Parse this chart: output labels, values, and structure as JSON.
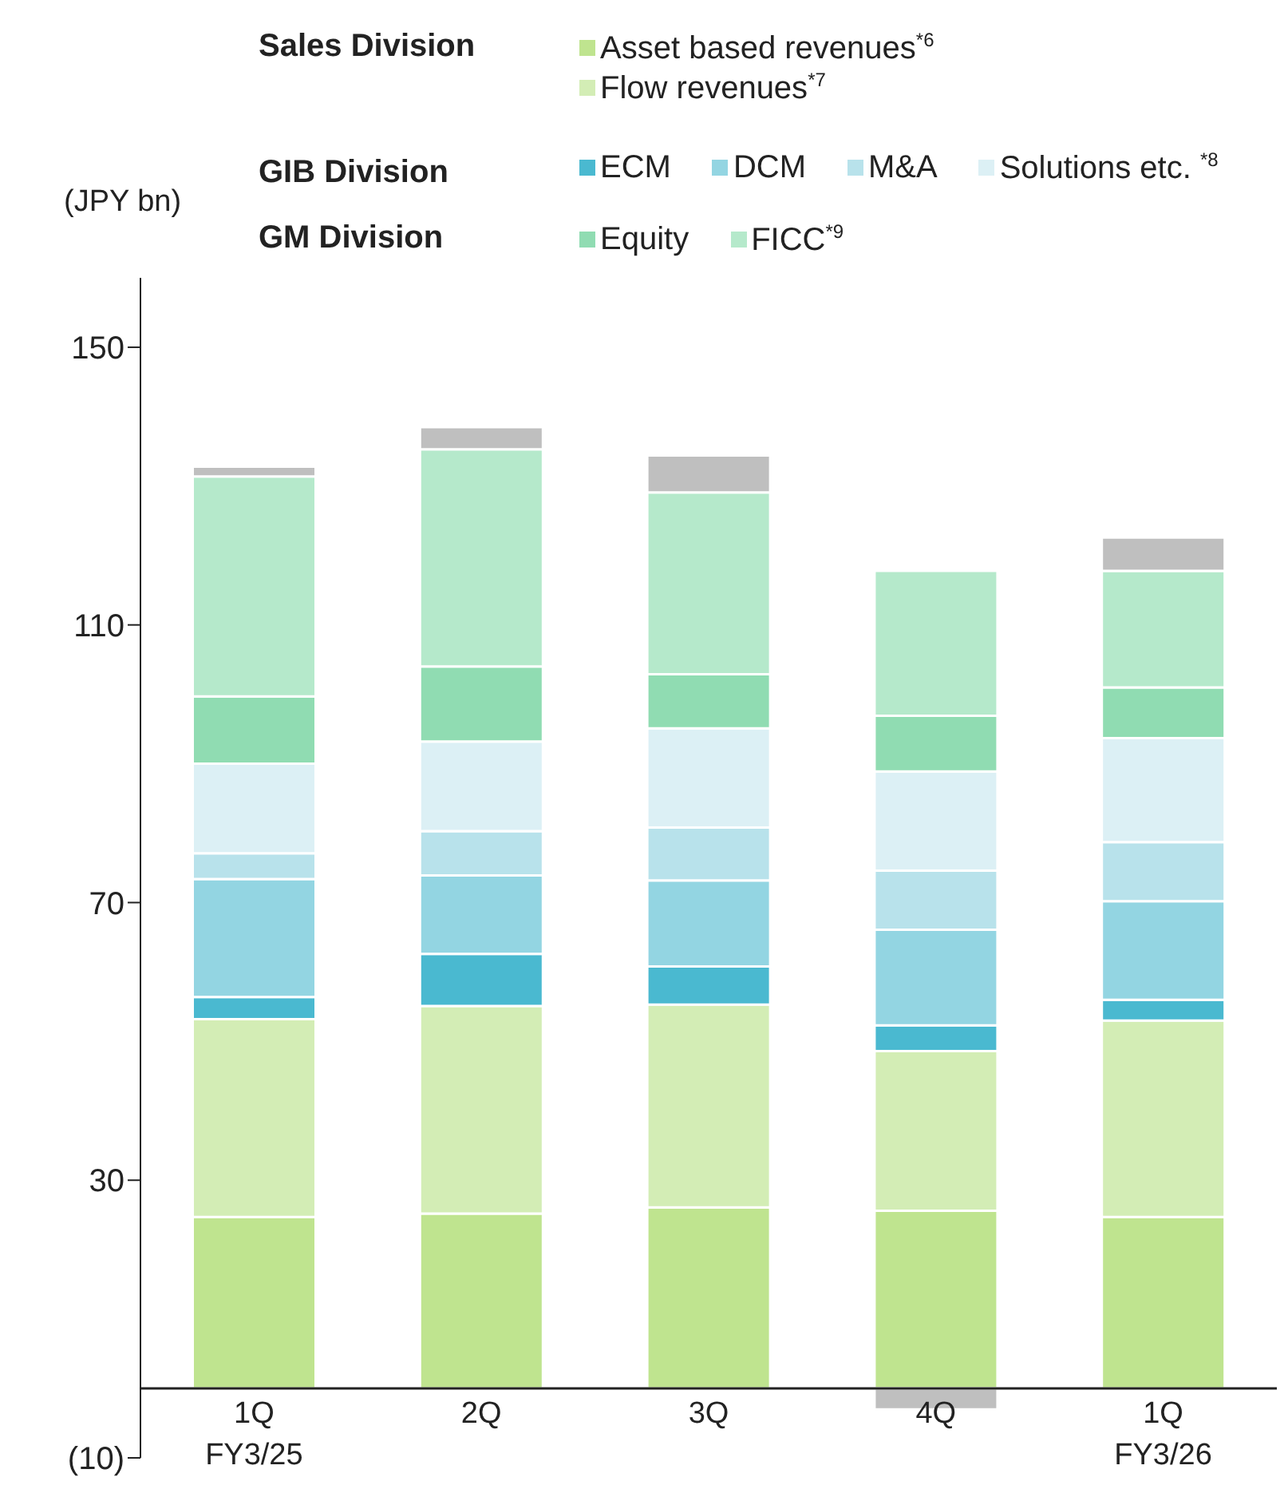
{
  "chart_data": {
    "type": "bar",
    "stacked": true,
    "ylabel": "(JPY bn)",
    "categories": [
      "1Q\nFY3/25",
      "2Q",
      "3Q",
      "4Q",
      "1Q\nFY3/26"
    ],
    "series": [
      {
        "name": "Asset based revenues$^{*6}$",
        "color": "#bfe48f",
        "values": [
          24.7,
          25.2,
          26.1,
          25.6,
          24.7
        ]
      },
      {
        "name": "Flow revenues$^{*7}$",
        "color": "#d3edb5",
        "values": [
          28.5,
          29.9,
          29.2,
          23.0,
          28.3
        ]
      },
      {
        "name": "ECM",
        "color": "#4ab9d0",
        "values": [
          3.2,
          7.5,
          5.5,
          3.7,
          3.0
        ]
      },
      {
        "name": "DCM",
        "color": "#93d5e2",
        "values": [
          17.0,
          11.3,
          12.4,
          13.8,
          14.2
        ]
      },
      {
        "name": "M&A",
        "color": "#b8e2eb",
        "values": [
          3.7,
          6.4,
          7.6,
          8.5,
          8.5
        ]
      },
      {
        "name": "Solutions etc. $^{*8}$",
        "color": "#dcf0f5",
        "values": [
          12.9,
          12.9,
          14.3,
          14.3,
          15.0
        ]
      },
      {
        "name": "Equity",
        "color": "#90dcb2",
        "values": [
          9.7,
          10.8,
          7.8,
          8.0,
          7.3
        ]
      },
      {
        "name": "FICC$^{*9}$",
        "color": "#b5e9cb",
        "values": [
          31.7,
          31.3,
          26.2,
          20.9,
          16.8
        ]
      },
      {
        "color": "#bfbfbf",
        "values": [
          1.4,
          3.2,
          5.3,
          -3.0,
          4.8
        ]
      }
    ],
    "annotations": [
      "Sales Division",
      "GIB Division",
      "GM Division"
    ],
    "ylim": [
      -10,
      160
    ],
    "yticks": [
      {
        "value": -10,
        "label": "(10)"
      },
      30,
      70,
      110,
      150
    ],
    "legend": "top"
  }
}
